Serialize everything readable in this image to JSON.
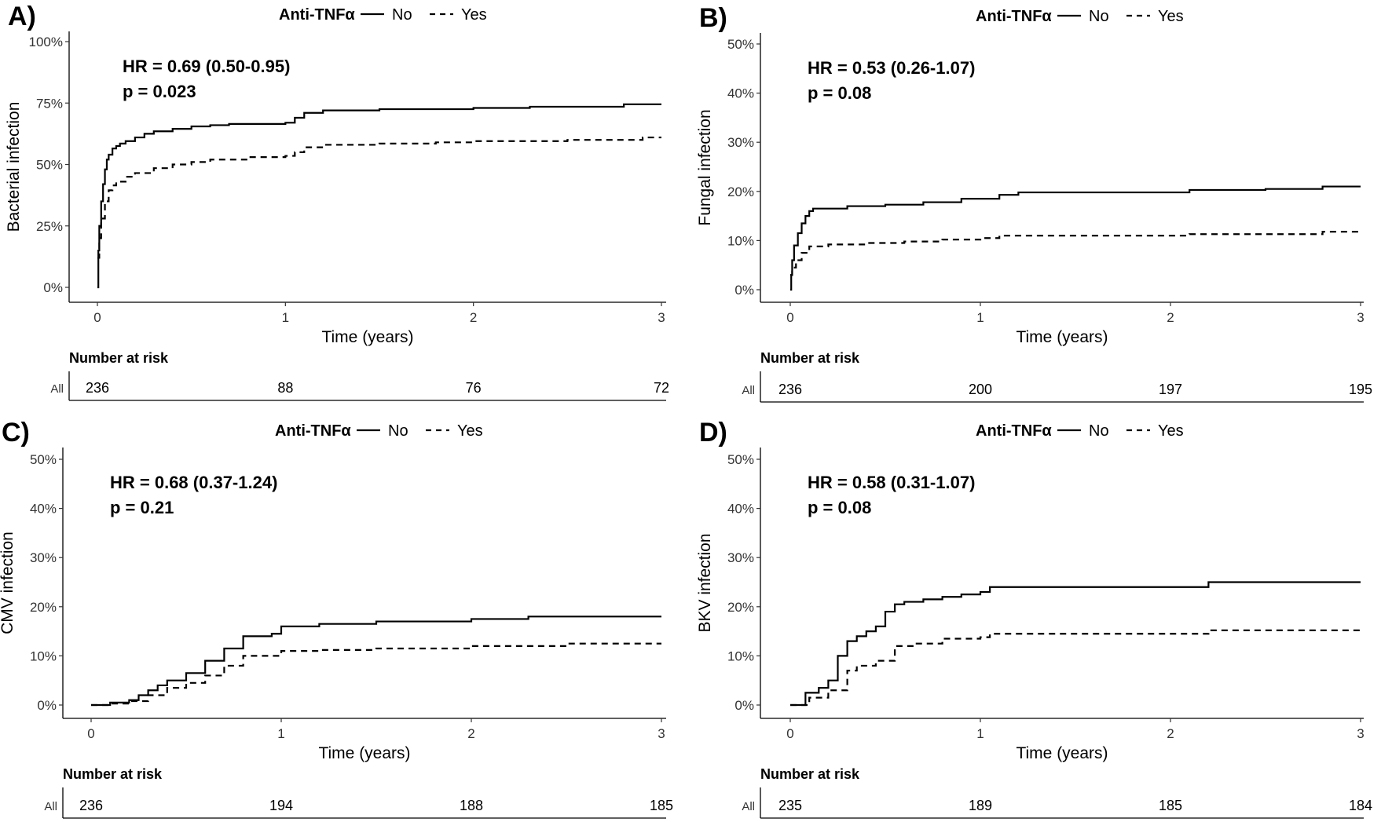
{
  "legend": {
    "title": "Anti-TNFα",
    "no_label": "No",
    "yes_label": "Yes"
  },
  "risk_table": {
    "title": "Number at risk",
    "row_label": "All"
  },
  "xlabel": "Time (years)",
  "chart_data": [
    {
      "type": "line",
      "panel_label": "A)",
      "ylabel": "Bacterial infection",
      "xlim": [
        0,
        3
      ],
      "ylim": [
        0,
        100
      ],
      "x_ticks": [
        "0",
        "1",
        "2",
        "3"
      ],
      "y_ticks": [
        "0%",
        "25%",
        "50%",
        "75%",
        "100%"
      ],
      "annotation": {
        "hr": "HR = 0.69 (0.50-0.95)",
        "p": "p = 0.023"
      },
      "risk_values": [
        "236",
        "88",
        "76",
        "72"
      ],
      "series": [
        {
          "name": "No",
          "x": [
            0,
            0.005,
            0.01,
            0.02,
            0.03,
            0.04,
            0.05,
            0.06,
            0.08,
            0.1,
            0.12,
            0.15,
            0.2,
            0.25,
            0.3,
            0.4,
            0.5,
            0.6,
            0.7,
            1.0,
            1.05,
            1.1,
            1.2,
            1.5,
            2.0,
            2.3,
            2.8,
            3.0
          ],
          "y": [
            0,
            15,
            25,
            35,
            42,
            48,
            52,
            54,
            56.5,
            57.5,
            58.5,
            59.5,
            61,
            62.5,
            63.5,
            64.5,
            65.5,
            66,
            66.5,
            67,
            69,
            71,
            72,
            72.5,
            73,
            73.5,
            74.5,
            74.5
          ]
        },
        {
          "name": "Yes",
          "x": [
            0,
            0.01,
            0.02,
            0.04,
            0.06,
            0.08,
            0.1,
            0.15,
            0.2,
            0.3,
            0.4,
            0.5,
            0.6,
            0.8,
            1.0,
            1.05,
            1.1,
            1.2,
            1.5,
            1.8,
            2.0,
            2.5,
            2.9,
            3.0
          ],
          "y": [
            12,
            20,
            28,
            35,
            39.5,
            41.5,
            43,
            45,
            46.5,
            48.5,
            50,
            51,
            52,
            53,
            53.5,
            55,
            57,
            58,
            58.5,
            59,
            59.5,
            60,
            61,
            61
          ]
        }
      ]
    },
    {
      "type": "line",
      "panel_label": "B)",
      "ylabel": "Fungal infection",
      "xlim": [
        0,
        3
      ],
      "ylim": [
        0,
        50
      ],
      "x_ticks": [
        "0",
        "1",
        "2",
        "3"
      ],
      "y_ticks": [
        "0%",
        "10%",
        "20%",
        "30%",
        "40%",
        "50%"
      ],
      "annotation": {
        "hr": "HR = 0.53 (0.26-1.07)",
        "p": "p = 0.08"
      },
      "risk_values": [
        "236",
        "200",
        "197",
        "195"
      ],
      "series": [
        {
          "name": "No",
          "x": [
            0,
            0.005,
            0.01,
            0.02,
            0.04,
            0.06,
            0.08,
            0.1,
            0.12,
            0.2,
            0.3,
            0.5,
            0.7,
            0.9,
            1.1,
            1.2,
            1.5,
            2.0,
            2.1,
            2.5,
            2.8,
            3.0
          ],
          "y": [
            0,
            3,
            6,
            9,
            11.5,
            13.5,
            15,
            16,
            16.5,
            16.5,
            17,
            17.3,
            17.8,
            18.5,
            19.3,
            19.8,
            19.8,
            19.8,
            20.3,
            20.5,
            21,
            21
          ]
        },
        {
          "name": "Yes",
          "x": [
            0,
            0.01,
            0.03,
            0.06,
            0.1,
            0.2,
            0.4,
            0.6,
            0.8,
            1.0,
            1.1,
            1.5,
            2.0,
            2.1,
            2.5,
            2.8,
            3.0
          ],
          "y": [
            3,
            4.5,
            6,
            7.5,
            8.8,
            9.2,
            9.5,
            9.8,
            10.2,
            10.5,
            11,
            11,
            11,
            11.3,
            11.3,
            11.8,
            11.8
          ]
        }
      ]
    },
    {
      "type": "line",
      "panel_label": "C)",
      "ylabel": "CMV infection",
      "xlim": [
        0,
        3
      ],
      "ylim": [
        0,
        50
      ],
      "x_ticks": [
        "0",
        "1",
        "2",
        "3"
      ],
      "y_ticks": [
        "0%",
        "10%",
        "20%",
        "30%",
        "40%",
        "50%"
      ],
      "annotation": {
        "hr": "HR = 0.68 (0.37-1.24)",
        "p": "p = 0.21"
      },
      "risk_values": [
        "236",
        "194",
        "188",
        "185"
      ],
      "series": [
        {
          "name": "No",
          "x": [
            0,
            0.1,
            0.2,
            0.25,
            0.3,
            0.35,
            0.4,
            0.5,
            0.6,
            0.7,
            0.8,
            0.95,
            1.0,
            1.2,
            1.5,
            2.0,
            2.3,
            3.0
          ],
          "y": [
            0,
            0.5,
            1,
            2,
            3,
            4,
            5,
            6.5,
            9,
            11.5,
            14,
            14.5,
            16,
            16.5,
            17,
            17.5,
            18,
            18
          ]
        },
        {
          "name": "Yes",
          "x": [
            0,
            0.1,
            0.2,
            0.3,
            0.4,
            0.5,
            0.6,
            0.7,
            0.8,
            1.0,
            1.2,
            1.5,
            2.0,
            2.5,
            3.0
          ],
          "y": [
            0,
            0.3,
            0.8,
            2,
            3.5,
            4.5,
            6,
            8,
            10,
            11,
            11.2,
            11.5,
            12,
            12.5,
            12.5
          ]
        }
      ]
    },
    {
      "type": "line",
      "panel_label": "D)",
      "ylabel": "BKV infection",
      "xlim": [
        0,
        3
      ],
      "ylim": [
        0,
        50
      ],
      "x_ticks": [
        "0",
        "1",
        "2",
        "3"
      ],
      "y_ticks": [
        "0%",
        "10%",
        "20%",
        "30%",
        "40%",
        "50%"
      ],
      "annotation": {
        "hr": "HR = 0.58 (0.31-1.07)",
        "p": "p = 0.08"
      },
      "risk_values": [
        "235",
        "189",
        "185",
        "184"
      ],
      "series": [
        {
          "name": "No",
          "x": [
            0,
            0.07,
            0.08,
            0.15,
            0.2,
            0.25,
            0.3,
            0.35,
            0.4,
            0.45,
            0.5,
            0.55,
            0.6,
            0.7,
            0.8,
            0.9,
            1.0,
            1.05,
            1.5,
            2.0,
            2.2,
            3.0
          ],
          "y": [
            0,
            0,
            2.5,
            3.5,
            5,
            10,
            13,
            14,
            15,
            16,
            19,
            20.5,
            21,
            21.5,
            22,
            22.5,
            23,
            24,
            24,
            24,
            25,
            25
          ]
        },
        {
          "name": "Yes",
          "x": [
            0,
            0.1,
            0.2,
            0.3,
            0.35,
            0.45,
            0.55,
            0.65,
            0.8,
            1.0,
            1.05,
            1.5,
            2.0,
            2.2,
            3.0
          ],
          "y": [
            0,
            1.5,
            3,
            7,
            8,
            9,
            12,
            12.5,
            13.5,
            13.8,
            14.5,
            14.5,
            14.5,
            15.2,
            15.2
          ]
        }
      ]
    }
  ]
}
